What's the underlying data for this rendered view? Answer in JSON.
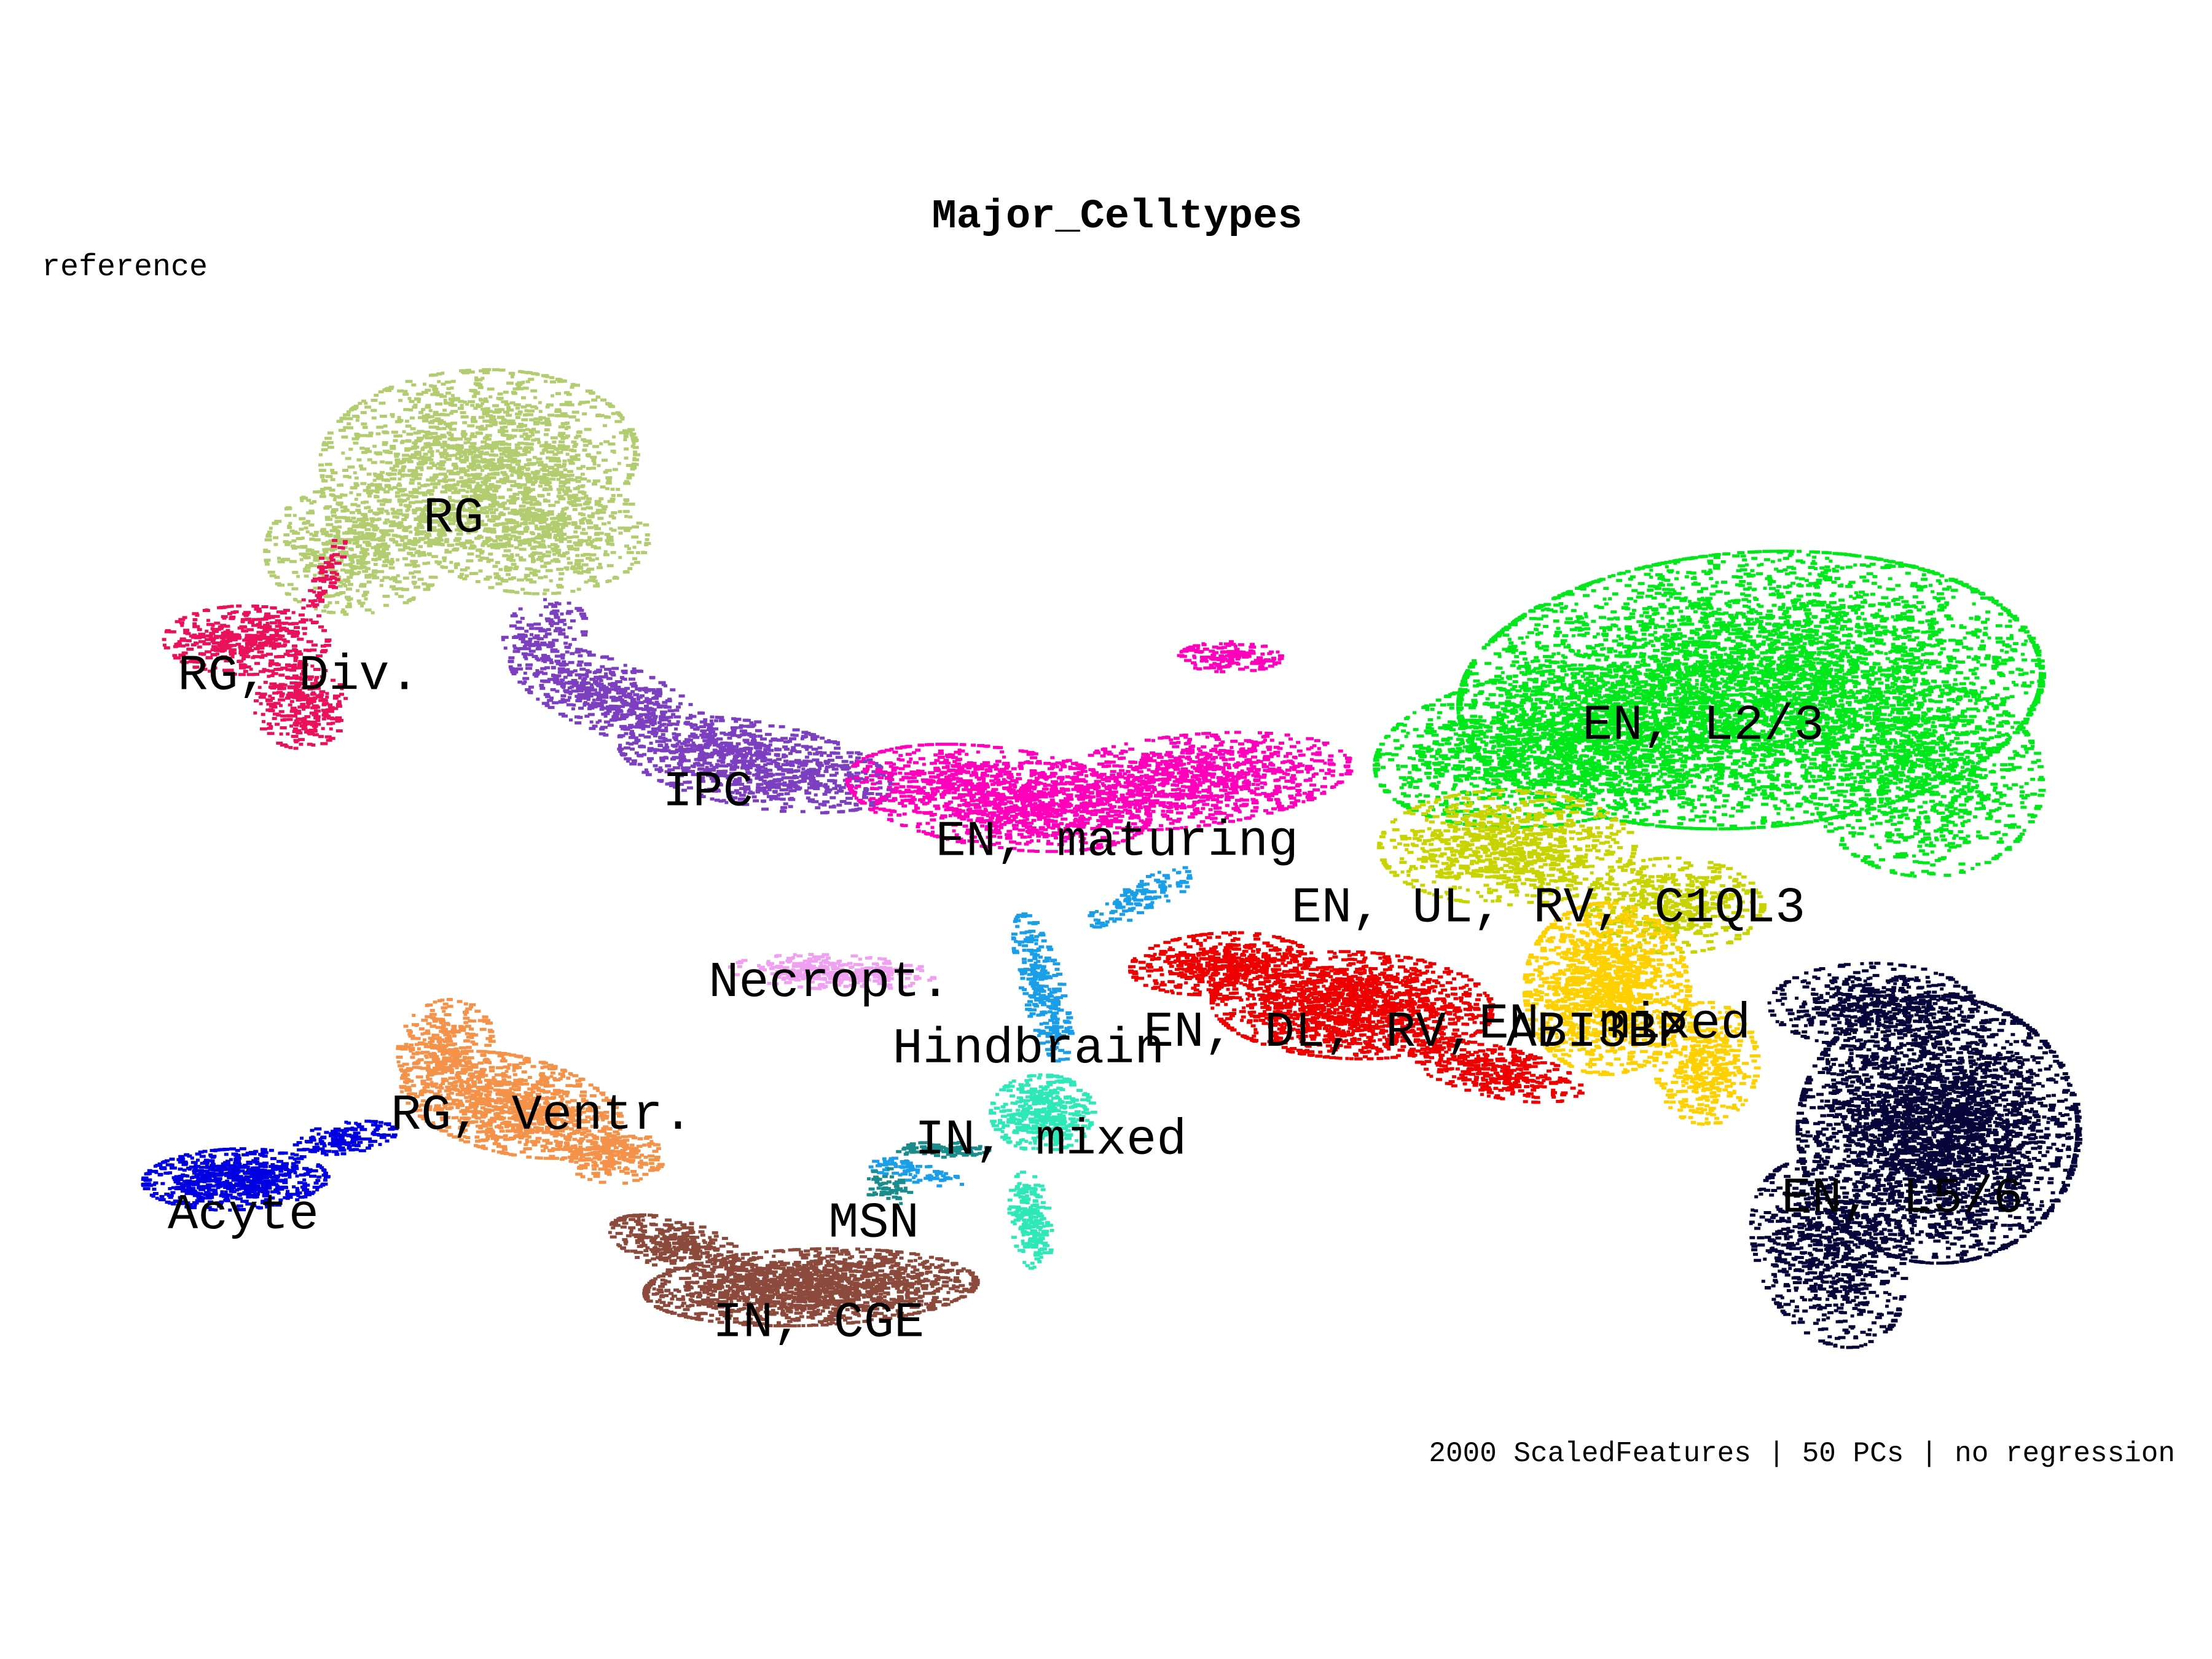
{
  "chart_data": {
    "type": "scatter",
    "title": "Major_Celltypes",
    "subtitle": "reference",
    "caption": "2000 ScaledFeatures | 50 PCs | no regression",
    "xlabel": "",
    "ylabel": "",
    "grid": false,
    "legend": "none",
    "xlim": [
      0,
      100
    ],
    "ylim": [
      0,
      100
    ],
    "clusters": [
      {
        "label": "RG",
        "color": "#b2cc70",
        "center": [
          20.5,
          69.0
        ]
      },
      {
        "label": "RG, Div.",
        "color": "#e8115a",
        "center": [
          13.5,
          59.5
        ]
      },
      {
        "label": "IPC",
        "color": "#7b3fbf",
        "center": [
          32.0,
          52.5
        ]
      },
      {
        "label": "EN, maturing",
        "color": "#ff00bb",
        "center": [
          50.5,
          49.5
        ]
      },
      {
        "label": "EN, L2/3",
        "color": "#00e81a",
        "center": [
          77.0,
          56.5
        ]
      },
      {
        "label": "EN, UL, RV, C1QL3",
        "color": "#c8d400",
        "center": [
          70.0,
          45.5
        ]
      },
      {
        "label": "EN, DL, RV, ABI3BP",
        "color": "#ee0000",
        "center": [
          64.0,
          38.0
        ]
      },
      {
        "label": "EN, mixed",
        "color": "#ffd000",
        "center": [
          73.0,
          38.5
        ]
      },
      {
        "label": "EN, L5/6",
        "color": "#05053a",
        "center": [
          86.0,
          28.0
        ]
      },
      {
        "label": "Hindbrain",
        "color": "#1a9ee8",
        "center": [
          46.5,
          37.0
        ]
      },
      {
        "label": "Necropt.",
        "color": "#f0a0f0",
        "center": [
          37.5,
          41.0
        ]
      },
      {
        "label": "IN, mixed",
        "color": "#2ee8b8",
        "center": [
          47.5,
          31.5
        ]
      },
      {
        "label": "MSN",
        "color": "#1a8c8c",
        "center": [
          39.5,
          26.5
        ]
      },
      {
        "label": "IN, CGE",
        "color": "#8c4a3c",
        "center": [
          37.0,
          20.5
        ]
      },
      {
        "label": "RG, Ventr.",
        "color": "#f5924a",
        "center": [
          24.5,
          33.0
        ]
      },
      {
        "label": "Acyte",
        "color": "#0000e0",
        "center": [
          11.0,
          27.0
        ]
      }
    ]
  }
}
